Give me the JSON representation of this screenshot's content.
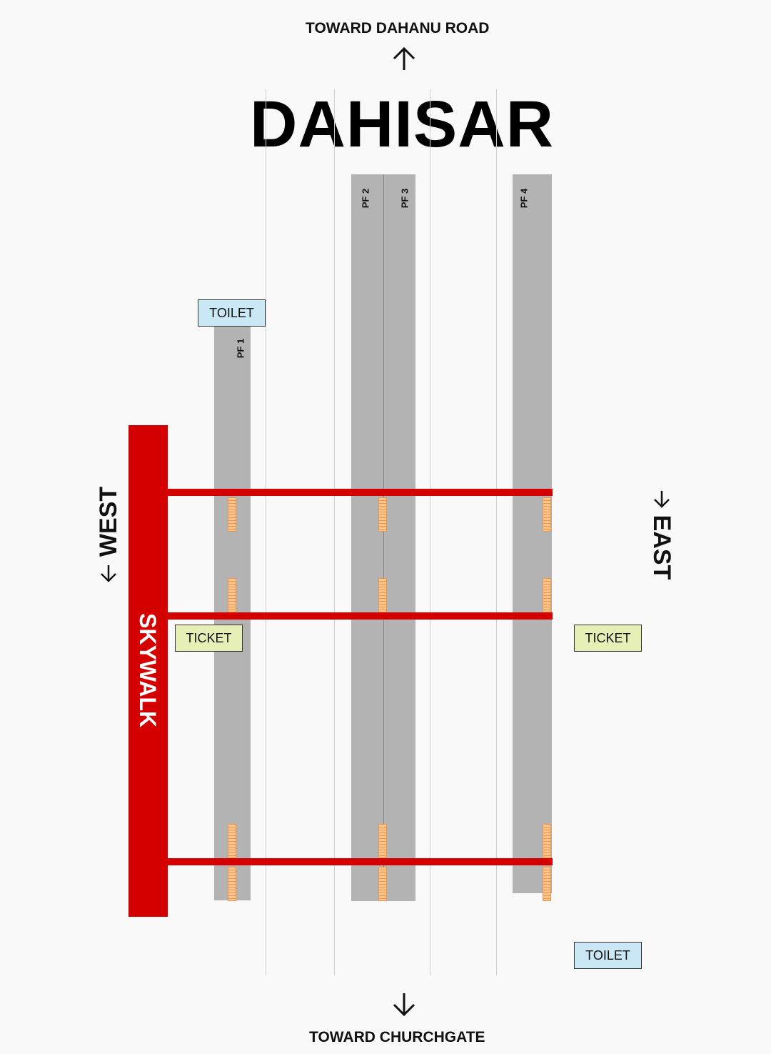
{
  "header": {
    "north_label": "TOWARD DAHANU ROAD",
    "north_arrow_icon": "arrow-up-icon"
  },
  "station": {
    "name": "DAHISAR"
  },
  "platforms": {
    "pf1": "PF 1",
    "pf2": "PF 2",
    "pf3": "PF 3",
    "pf4": "PF 4"
  },
  "skywalk": {
    "label": "SKYWALK"
  },
  "sides": {
    "west": "WEST",
    "east": "EAST"
  },
  "facilities": {
    "toilet_north": "TOILET",
    "ticket_west": "TICKET",
    "ticket_east": "TICKET",
    "toilet_south": "TOILET"
  },
  "footer": {
    "south_label": "TOWARD CHURCHGATE",
    "south_arrow_icon": "arrow-down-icon"
  },
  "colors": {
    "skywalk": "#d40000",
    "platform": "#b3b3b3",
    "toilet": "#cbe8f6",
    "ticket": "#e6efb5",
    "stair": "#ffc58a"
  }
}
